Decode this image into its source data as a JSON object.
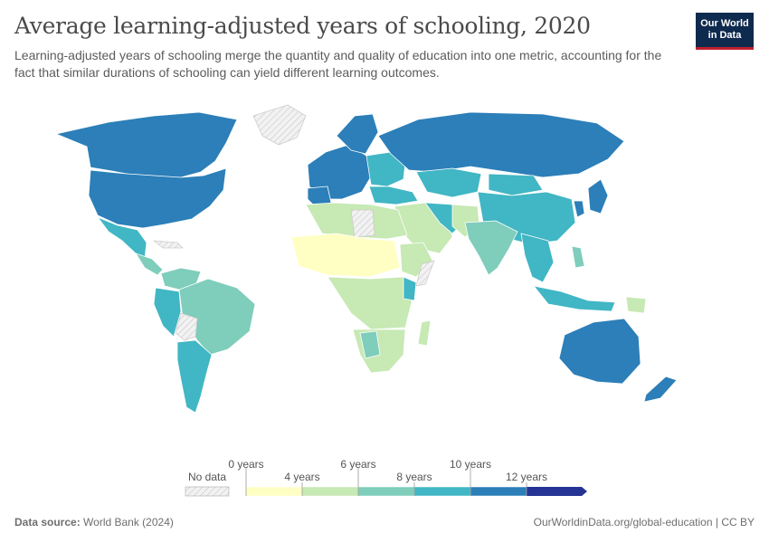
{
  "header": {
    "title": "Average learning-adjusted years of schooling, 2020",
    "subtitle": "Learning-adjusted years of schooling merge the quantity and quality of education into one metric, accounting for the fact that similar durations of schooling can yield different learning outcomes.",
    "logo_line1": "Our World",
    "logo_line2": "in Data"
  },
  "legend": {
    "no_data_label": "No data",
    "top_labels": [
      "0 years",
      "6 years",
      "10 years"
    ],
    "bottom_labels": [
      "4 years",
      "8 years",
      "12 years"
    ],
    "bins": [
      {
        "from": 0,
        "to": 4,
        "color": "#ffffc4"
      },
      {
        "from": 4,
        "to": 6,
        "color": "#c7e9b4"
      },
      {
        "from": 6,
        "to": 8,
        "color": "#7fcdbb"
      },
      {
        "from": 8,
        "to": 10,
        "color": "#41b6c4"
      },
      {
        "from": 10,
        "to": 12,
        "color": "#2c7fb8"
      },
      {
        "from": 12,
        "to": null,
        "color": "#253494"
      }
    ]
  },
  "footer": {
    "source_label": "Data source:",
    "source_text": "World Bank (2024)",
    "url_text": "OurWorldinData.org/global-education | CC BY"
  },
  "colors": {
    "ocean": "#ffffff",
    "no_data": "#e4e4e4",
    "border": "#ffffff",
    "brand": "#0f2a4f",
    "accent": "#c0202d"
  }
}
